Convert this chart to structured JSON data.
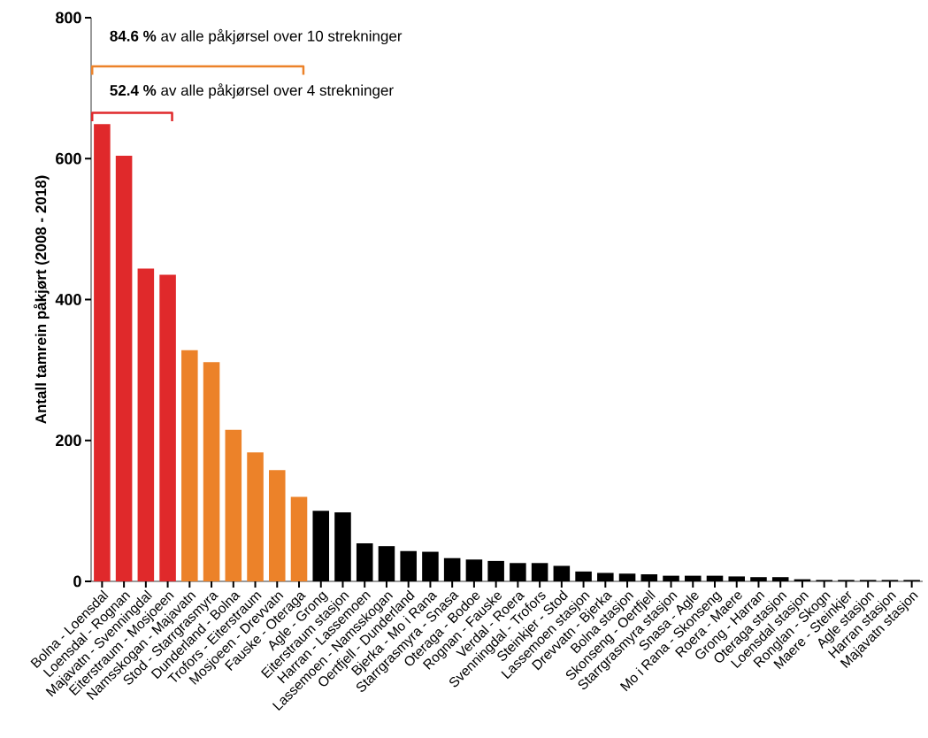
{
  "chart_data": {
    "type": "bar",
    "ylabel": "Antall tamrein påkjørt  (2008 - 2018)",
    "categories": [
      "Bolna - Loensdal",
      "Loensdal - Rognan",
      "Majavatn - Svenningdal",
      "Eiterstraum - Mosjoeen",
      "Namsskogan - Majavatn",
      "Stod - Starrgrasmyra",
      "Dunderland - Bolna",
      "Trofors - Eiterstraum",
      "Mosjoeen - Drevvatn",
      "Fauske - Oteraga",
      "Agle - Grong",
      "Eiterstraum stasjon",
      "Harran - Lassemoen",
      "Lassemoen - Namsskogan",
      "Oertfjell - Dunderland",
      "Bjerka - Mo i Rana",
      "Starrgrasmyra - Snasa",
      "Oteraga - Bodoe",
      "Rognan - Fauske",
      "Verdal - Roera",
      "Svenningdal - Trofors",
      "Steinkjer - Stod",
      "Lassemoen stasjon",
      "Drevvatn - Bjerka",
      "Bolna stasjon",
      "Skonseng - Oertfjell",
      "Starrgrasmyra stasjon",
      "Snasa - Agle",
      "Mo i Rana - Skonseng",
      "Roera - Maere",
      "Grong - Harran",
      "Oteraga stasjon",
      "Loensdal stasjon",
      "Ronglan - Skogn",
      "Maere - Steinkjer",
      "Agle stasjon",
      "Harran stasjon",
      "Majavatn stasjon"
    ],
    "values": [
      649,
      604,
      444,
      435,
      328,
      311,
      215,
      183,
      158,
      120,
      100,
      98,
      54,
      50,
      43,
      42,
      33,
      31,
      29,
      26,
      26,
      22,
      14,
      12,
      11,
      10,
      8,
      8,
      8,
      7,
      6,
      6,
      3,
      2,
      2,
      2,
      2,
      2
    ],
    "colors": [
      "#e0292b",
      "#e0292b",
      "#e0292b",
      "#e0292b",
      "#ec8229",
      "#ec8229",
      "#ec8229",
      "#ec8229",
      "#ec8229",
      "#ec8229",
      "#000000",
      "#000000",
      "#000000",
      "#000000",
      "#000000",
      "#000000",
      "#000000",
      "#000000",
      "#000000",
      "#000000",
      "#000000",
      "#000000",
      "#000000",
      "#000000",
      "#000000",
      "#000000",
      "#000000",
      "#000000",
      "#000000",
      "#000000",
      "#000000",
      "#000000",
      "#000000",
      "#000000",
      "#000000",
      "#000000",
      "#000000",
      "#000000"
    ],
    "ylim": [
      0,
      800
    ],
    "yticks": [
      0,
      200,
      400,
      600,
      800
    ],
    "grid": false,
    "annotations": [
      "**84.6 %** av alle påkjørsel over 10 strekninger",
      "**52.4 %** av alle påkjørsel over 4 strekninger"
    ]
  }
}
